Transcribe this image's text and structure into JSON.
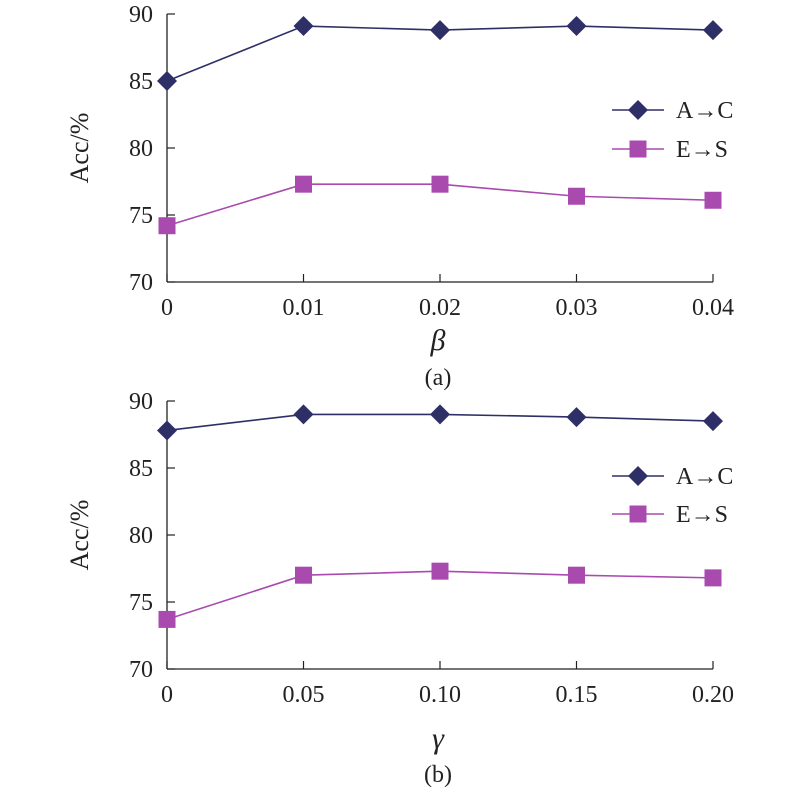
{
  "chart_data": [
    {
      "type": "line",
      "caption": "(a)",
      "xlabel": "β",
      "ylabel": "Acc/%",
      "categories": [
        "0",
        "0.01",
        "0.02",
        "0.03",
        "0.04"
      ],
      "ylim": [
        70,
        90
      ],
      "yticks": [
        "70",
        "75",
        "80",
        "85",
        "90"
      ],
      "series": [
        {
          "name": "A→C",
          "color": "#2e2f66",
          "marker": "diamond",
          "values": [
            85.0,
            89.1,
            88.8,
            89.1,
            88.8
          ]
        },
        {
          "name": "E→S",
          "color": "#a94aae",
          "marker": "square",
          "values": [
            74.2,
            77.3,
            77.3,
            76.4,
            76.1
          ]
        }
      ],
      "legend": "right"
    },
    {
      "type": "line",
      "caption": "(b)",
      "xlabel": "γ",
      "ylabel": "Acc/%",
      "categories": [
        "0",
        "0.05",
        "0.10",
        "0.15",
        "0.20"
      ],
      "ylim": [
        70,
        90
      ],
      "yticks": [
        "70",
        "75",
        "80",
        "85",
        "90"
      ],
      "series": [
        {
          "name": "A→C",
          "color": "#2e2f66",
          "marker": "diamond",
          "values": [
            87.8,
            89.0,
            89.0,
            88.8,
            88.5
          ]
        },
        {
          "name": "E→S",
          "color": "#a94aae",
          "marker": "square",
          "values": [
            73.7,
            77.0,
            77.3,
            77.0,
            76.8
          ]
        }
      ],
      "legend": "right"
    }
  ]
}
